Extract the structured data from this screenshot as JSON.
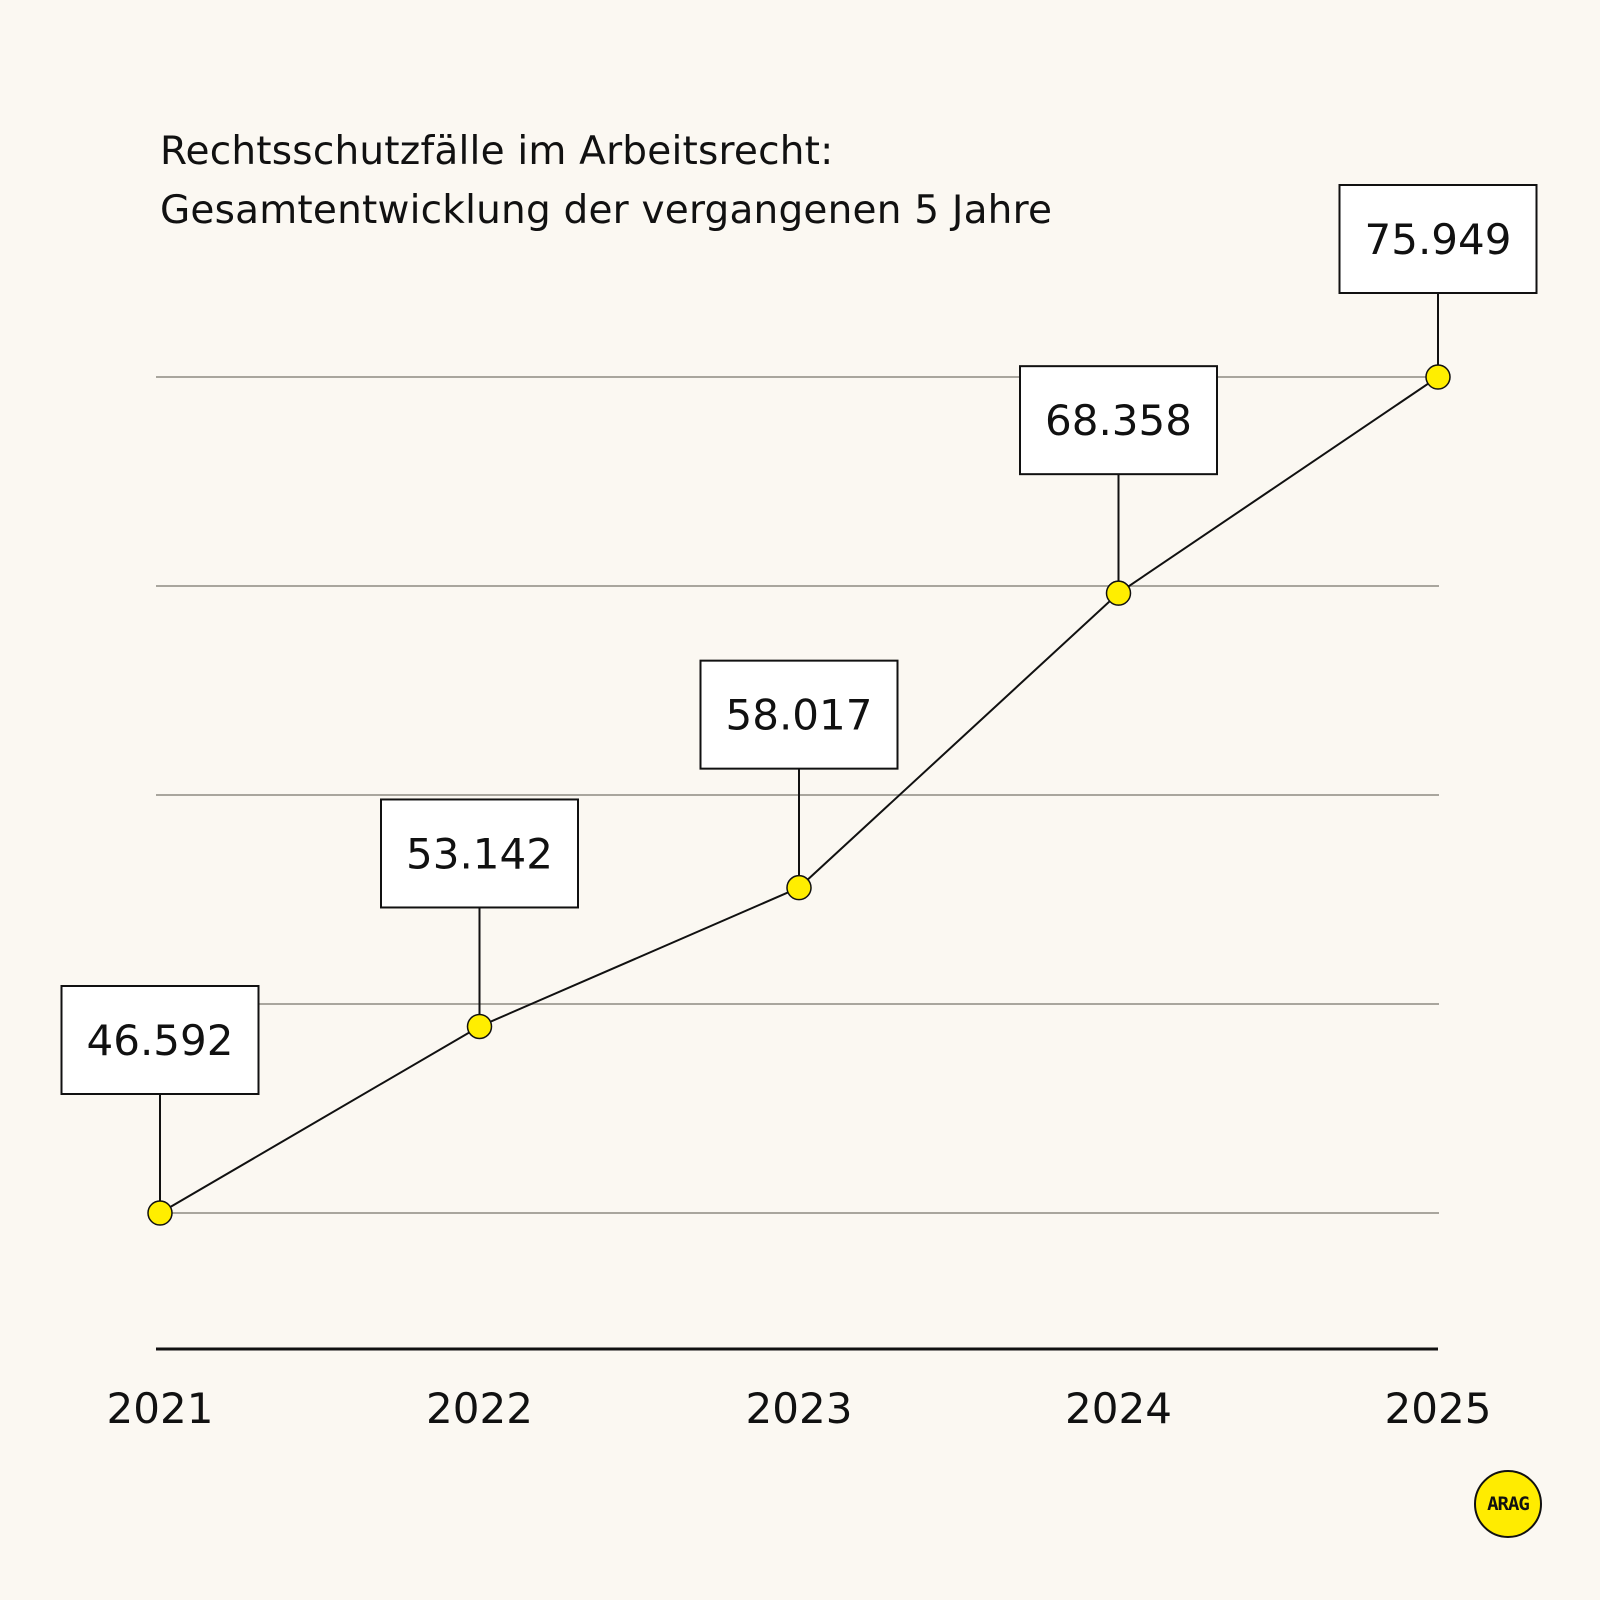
{
  "chart_data": {
    "type": "line",
    "title": [
      "Rechtsschutzfälle im Arbeitsrecht:",
      "Gesamtentwicklung der vergangenen 5 Jahre"
    ],
    "xlabel": "",
    "ylabel": "",
    "categories": [
      "2021",
      "2022",
      "2023",
      "2024",
      "2025"
    ],
    "values": [
      46592,
      53142,
      58017,
      68358,
      75949
    ],
    "data_labels": [
      "46.592",
      "53.142",
      "58.017",
      "68.358",
      "75.949"
    ],
    "ylim": [
      46592,
      75949
    ],
    "grid": true,
    "legend": "none",
    "colors": {
      "line": "#111111",
      "marker": "#ffee00",
      "grid": "#a9a69e",
      "background": "#fbf8f2"
    }
  },
  "logo": {
    "text": "ARAG",
    "color": "#ffec00"
  }
}
